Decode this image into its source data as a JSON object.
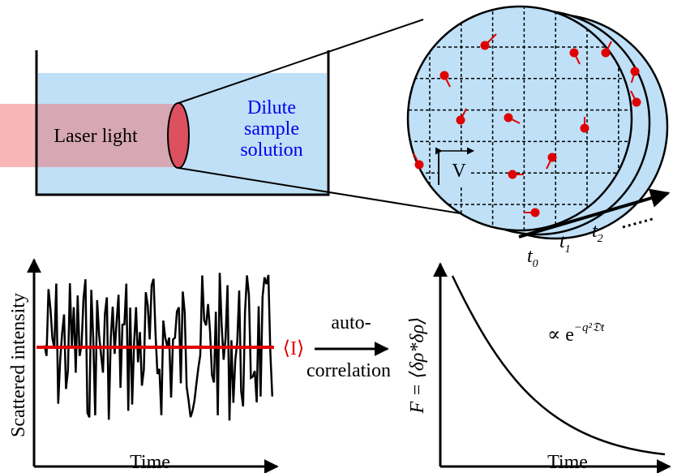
{
  "top": {
    "laser_label": "Laser light",
    "sample_label": [
      "Dilute",
      "sample",
      "solution"
    ],
    "volume_label": "V",
    "time_labels": [
      {
        "symbol": "t",
        "subscript": "0"
      },
      {
        "symbol": "t",
        "subscript": "1"
      },
      {
        "symbol": "t",
        "subscript": "2"
      }
    ]
  },
  "bottom": {
    "left": {
      "y_label": "Scattered intensity",
      "x_label": "Time",
      "mean_label": "⟨I⟩"
    },
    "arrow": {
      "top": "auto-",
      "bottom": "correlation"
    },
    "right": {
      "y_label": "F = ⟨δρ*δρ⟩",
      "formula_base": "∝ e",
      "formula_exponent": "−q²𝔇t",
      "x_label": "Time"
    }
  }
}
